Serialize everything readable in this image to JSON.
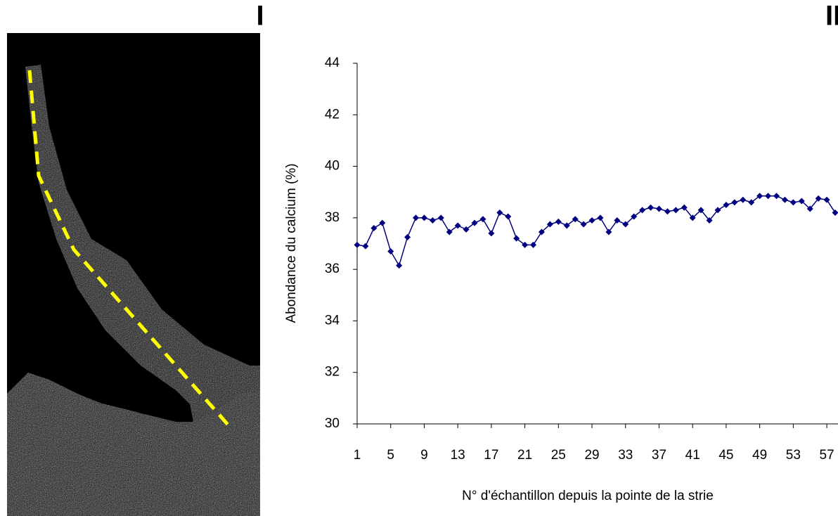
{
  "panels": [
    "I",
    "II"
  ],
  "chart_data": {
    "type": "line",
    "y_label": "Abondance du calcium (%)",
    "x_label": "N° d'échantillon depuis la pointe de la strie",
    "categories": [
      1,
      null,
      null,
      null,
      5,
      null,
      null,
      null,
      9,
      null,
      null,
      null,
      13,
      null,
      null,
      null,
      17,
      null,
      null,
      null,
      21,
      null,
      null,
      null,
      25,
      null,
      null,
      null,
      29,
      null,
      null,
      null,
      33,
      null,
      null,
      null,
      37,
      null,
      null,
      null,
      41,
      null,
      null,
      null,
      45,
      null,
      null,
      null,
      49,
      null,
      null,
      null,
      53,
      null,
      null,
      null,
      57,
      null
    ],
    "series": [
      {
        "color": "#000080",
        "values": [
          36.95,
          36.9,
          37.6,
          37.8,
          36.7,
          36.15,
          37.25,
          38.0,
          38.0,
          37.9,
          38.0,
          37.45,
          37.7,
          37.55,
          37.8,
          37.95,
          37.4,
          38.2,
          38.05,
          37.2,
          36.95,
          36.95,
          37.45,
          37.75,
          37.85,
          37.7,
          37.95,
          37.75,
          37.9,
          38.0,
          37.45,
          37.9,
          37.75,
          38.05,
          38.3,
          38.4,
          38.35,
          38.25,
          38.3,
          38.4,
          38.0,
          38.3,
          37.9,
          38.3,
          38.5,
          38.6,
          38.7,
          38.6,
          38.85,
          38.85,
          38.85,
          38.7,
          38.6,
          38.65,
          38.35,
          38.75,
          38.7,
          38.2
        ]
      }
    ],
    "ylim": [
      30,
      44
    ],
    "yticks": [
      30,
      32,
      34,
      36,
      38,
      40,
      42,
      44
    ],
    "grid": false
  }
}
